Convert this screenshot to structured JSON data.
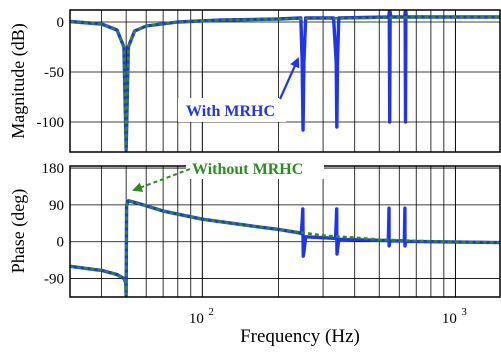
{
  "chart_data": [
    {
      "type": "line",
      "ylabel": "Magnitude (dB)",
      "xscale": "log",
      "xlim": [
        30,
        1500
      ],
      "ylim": [
        -130,
        12
      ],
      "yticks": [
        {
          "value": 0,
          "label": "0"
        },
        {
          "value": -50,
          "label": "-50"
        },
        {
          "value": -100,
          "label": "-100"
        }
      ],
      "grid": true,
      "annotation": {
        "text": "With MRHC",
        "color": "#1f35e6"
      },
      "series": [
        {
          "name": "With MRHC",
          "color": "#1f35e6",
          "points": [
            [
              30,
              0.5
            ],
            [
              40,
              -2
            ],
            [
              46,
              -8
            ],
            [
              49,
              -25
            ],
            [
              50,
              -128
            ],
            [
              51,
              -25
            ],
            [
              54,
              -9
            ],
            [
              60,
              -4
            ],
            [
              80,
              0
            ],
            [
              120,
              2
            ],
            [
              200,
              3
            ],
            [
              245,
              4
            ],
            [
              248,
              -40
            ],
            [
              250,
              -108
            ],
            [
              252,
              -40
            ],
            [
              256,
              4
            ],
            [
              330,
              4
            ],
            [
              338,
              -40
            ],
            [
              340,
              -105
            ],
            [
              342,
              -40
            ],
            [
              346,
              4
            ],
            [
              545,
              5
            ],
            [
              548,
              10
            ],
            [
              550,
              -100
            ],
            [
              552,
              10
            ],
            [
              556,
              5
            ],
            [
              630,
              5
            ],
            [
              633,
              10
            ],
            [
              635,
              -100
            ],
            [
              637,
              10
            ],
            [
              640,
              5
            ],
            [
              1000,
              5
            ],
            [
              1500,
              5
            ]
          ]
        },
        {
          "name": "Without MRHC",
          "color": "#2e8b22",
          "points": [
            [
              30,
              0.5
            ],
            [
              40,
              -2
            ],
            [
              46,
              -8
            ],
            [
              49,
              -25
            ],
            [
              50,
              -128
            ],
            [
              51,
              -25
            ],
            [
              54,
              -9
            ],
            [
              60,
              -4
            ],
            [
              80,
              0
            ],
            [
              120,
              2
            ],
            [
              200,
              3
            ],
            [
              400,
              4
            ],
            [
              1000,
              5
            ],
            [
              1500,
              5
            ]
          ]
        }
      ]
    },
    {
      "type": "line",
      "ylabel": "Phase (deg)",
      "xlabel": "Frequency (Hz)",
      "xscale": "log",
      "xlim": [
        30,
        1500
      ],
      "ylim": [
        -135,
        185
      ],
      "yticks": [
        {
          "value": 180,
          "label": "180"
        },
        {
          "value": 90,
          "label": "90"
        },
        {
          "value": 0,
          "label": "0"
        },
        {
          "value": -90,
          "label": "-90"
        }
      ],
      "xticks": [
        {
          "value": 100,
          "base": "10",
          "exp": "2"
        },
        {
          "value": 1000,
          "base": "10",
          "exp": "3"
        }
      ],
      "grid": true,
      "annotation": {
        "text": "Without MRHC",
        "color": "#2e8b22"
      },
      "series": [
        {
          "name": "With MRHC",
          "color": "#1f35e6",
          "points": [
            [
              30,
              -60
            ],
            [
              40,
              -70
            ],
            [
              46,
              -80
            ],
            [
              49,
              -90
            ],
            [
              49.8,
              -100
            ],
            [
              50,
              -130
            ],
            [
              50.2,
              90
            ],
            [
              51,
              100
            ],
            [
              55,
              95
            ],
            [
              70,
              75
            ],
            [
              100,
              55
            ],
            [
              150,
              40
            ],
            [
              200,
              30
            ],
            [
              240,
              22
            ],
            [
              246,
              20
            ],
            [
              248,
              50
            ],
            [
              249.5,
              80
            ],
            [
              250,
              5
            ],
            [
              250.5,
              -35
            ],
            [
              252,
              -25
            ],
            [
              256,
              12
            ],
            [
              300,
              10
            ],
            [
              336,
              8
            ],
            [
              338,
              45
            ],
            [
              339.5,
              80
            ],
            [
              340,
              5
            ],
            [
              340.5,
              -30
            ],
            [
              342,
              -20
            ],
            [
              346,
              6
            ],
            [
              450,
              4
            ],
            [
              543,
              3
            ],
            [
              545,
              40
            ],
            [
              546.5,
              82
            ],
            [
              547,
              -10
            ],
            [
              548,
              -5
            ],
            [
              552,
              2
            ],
            [
              628,
              2
            ],
            [
              630,
              40
            ],
            [
              631.5,
              82
            ],
            [
              632,
              -10
            ],
            [
              633,
              -5
            ],
            [
              637,
              1
            ],
            [
              800,
              0
            ],
            [
              1500,
              -2
            ]
          ]
        },
        {
          "name": "Without MRHC",
          "color": "#2e8b22",
          "points": [
            [
              30,
              -60
            ],
            [
              40,
              -70
            ],
            [
              46,
              -80
            ],
            [
              49,
              -90
            ],
            [
              49.8,
              -100
            ],
            [
              50,
              -130
            ],
            [
              50.2,
              90
            ],
            [
              51,
              100
            ],
            [
              55,
              95
            ],
            [
              70,
              75
            ],
            [
              100,
              55
            ],
            [
              150,
              40
            ],
            [
              200,
              30
            ],
            [
              250,
              22
            ],
            [
              300,
              15
            ],
            [
              400,
              10
            ],
            [
              500,
              5
            ],
            [
              700,
              2
            ],
            [
              1000,
              0
            ],
            [
              1500,
              -2
            ]
          ]
        }
      ]
    }
  ]
}
